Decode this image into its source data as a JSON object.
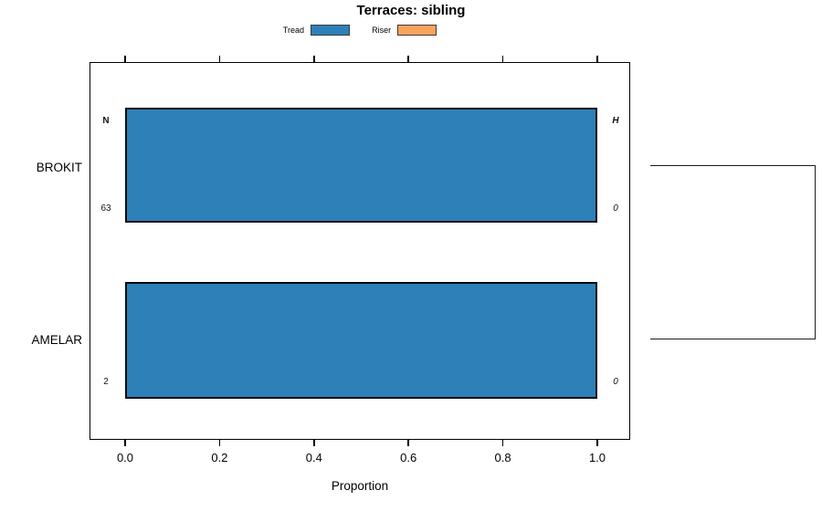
{
  "title": "Terraces: sibling",
  "legend": {
    "items": [
      {
        "label": "Tread",
        "color": "#2E80B9"
      },
      {
        "label": "Riser",
        "color": "#F9A45B"
      }
    ]
  },
  "chart_data": {
    "type": "bar",
    "orientation": "horizontal",
    "title": "Terraces: sibling",
    "categories": [
      "BROKIT",
      "AMELAR"
    ],
    "series": [
      {
        "name": "Tread",
        "color": "#2E80B9",
        "values": [
          1.0,
          1.0
        ]
      },
      {
        "name": "Riser",
        "color": "#F9A45B",
        "values": [
          0.0,
          0.0
        ]
      }
    ],
    "xlabel": "Proportion",
    "xlim": [
      0.0,
      1.0
    ],
    "xticks": [
      "0.0",
      "0.2",
      "0.4",
      "0.6",
      "0.8",
      "1.0"
    ],
    "grid": false,
    "legend_position": "top",
    "annotations": {
      "left_header": "N",
      "right_header": "H",
      "left_values": [
        "63",
        "2"
      ],
      "right_values": [
        "0",
        "0"
      ]
    },
    "right_dendrogram_bracket": true
  }
}
